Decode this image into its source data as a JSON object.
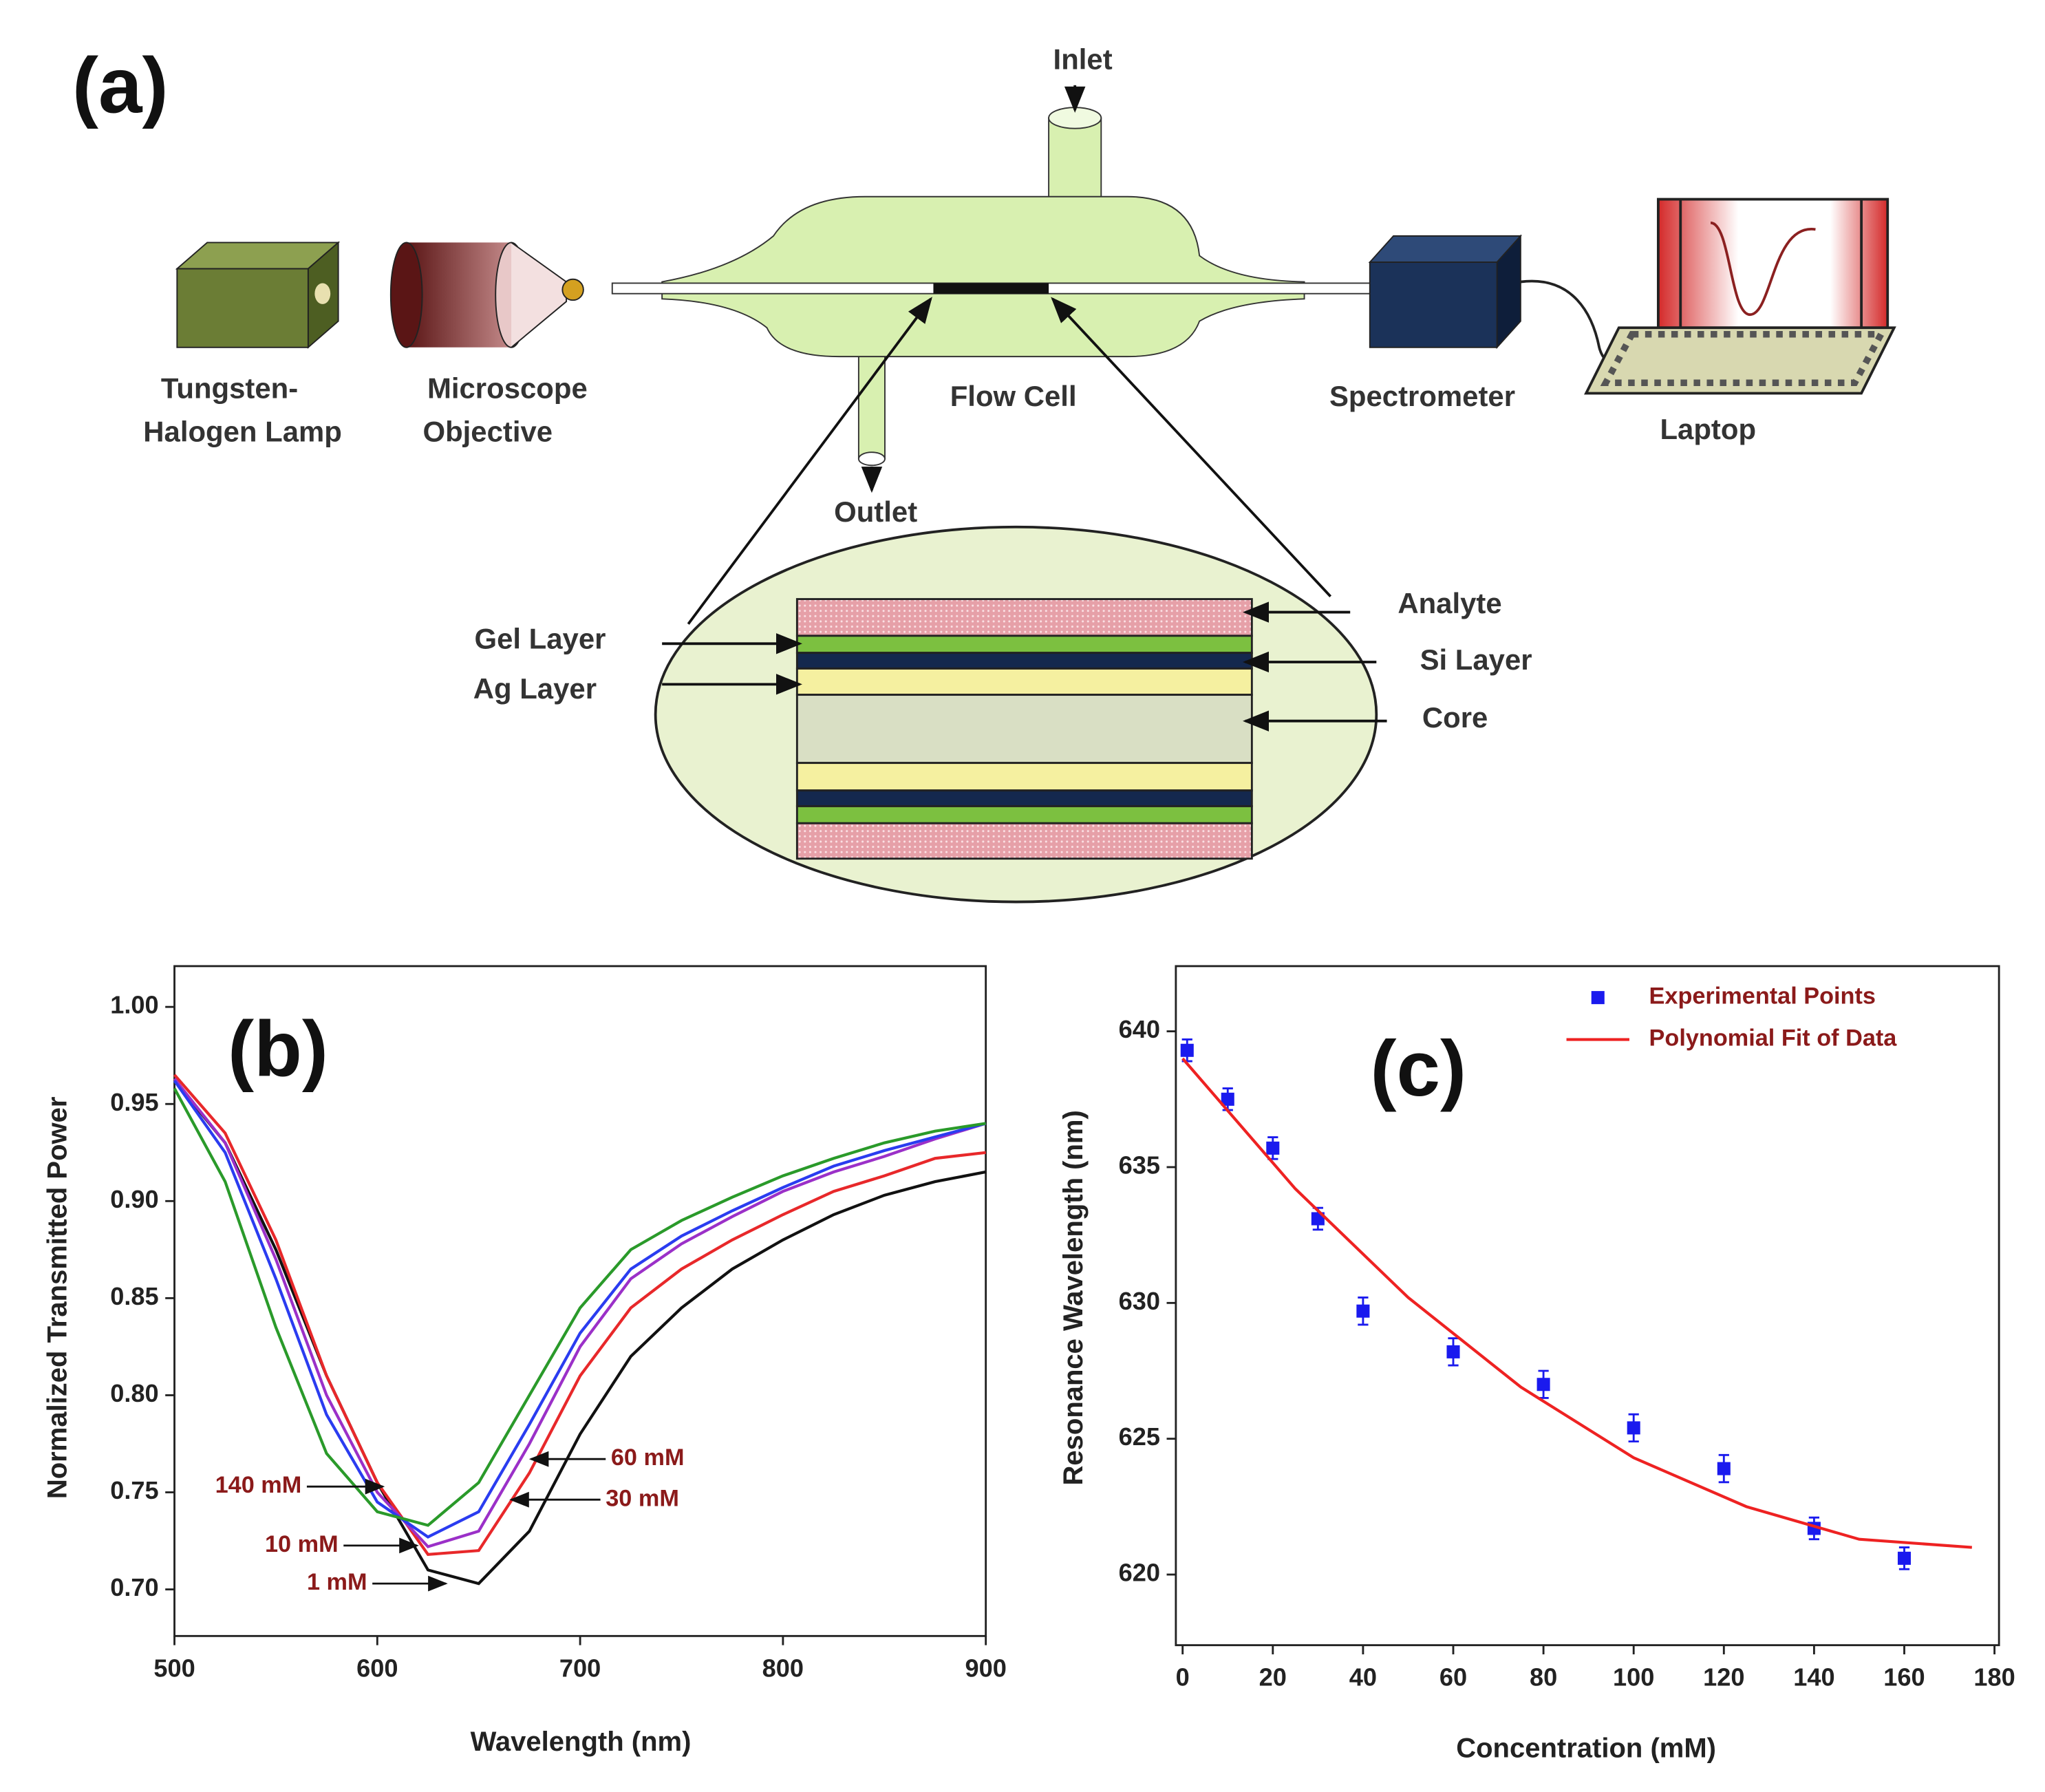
{
  "diagram": {
    "panel": "(a)",
    "inlet": "Inlet",
    "outlet": "Outlet",
    "lamp": [
      "Tungsten-",
      "Halogen Lamp"
    ],
    "objective": [
      "Microscope",
      "Objective"
    ],
    "flow_cell": "Flow Cell",
    "spectrometer": "Spectrometer",
    "laptop": "Laptop",
    "layers": {
      "gel": "Gel Layer",
      "ag": "Ag Layer",
      "analyte": "Analyte",
      "si": "Si Layer",
      "core": "Core"
    }
  },
  "chart_data": [
    {
      "type": "line",
      "panel": "(b)",
      "x_label": "Wavelength (nm)",
      "y_label": "Normalized Transmitted Power",
      "x": [
        500,
        525,
        550,
        575,
        600,
        625,
        650,
        675,
        700,
        725,
        750,
        775,
        800,
        825,
        850,
        875,
        900
      ],
      "series": [
        {
          "name": "1 mM",
          "color": "#111111",
          "values": [
            0.962,
            0.93,
            0.875,
            0.81,
            0.755,
            0.71,
            0.703,
            0.73,
            0.78,
            0.82,
            0.845,
            0.865,
            0.88,
            0.893,
            0.903,
            0.91,
            0.915
          ]
        },
        {
          "name": "10 mM",
          "color": "#e8282a",
          "values": [
            0.965,
            0.935,
            0.88,
            0.81,
            0.755,
            0.718,
            0.72,
            0.76,
            0.81,
            0.845,
            0.865,
            0.88,
            0.893,
            0.905,
            0.913,
            0.922,
            0.925
          ]
        },
        {
          "name": "30 mM",
          "color": "#9b30c8",
          "values": [
            0.963,
            0.93,
            0.87,
            0.8,
            0.75,
            0.722,
            0.73,
            0.775,
            0.825,
            0.86,
            0.878,
            0.892,
            0.905,
            0.915,
            0.923,
            0.932,
            0.94
          ]
        },
        {
          "name": "60 mM",
          "color": "#2a3cf0",
          "values": [
            0.962,
            0.925,
            0.86,
            0.79,
            0.745,
            0.727,
            0.74,
            0.785,
            0.832,
            0.865,
            0.882,
            0.895,
            0.907,
            0.918,
            0.926,
            0.933,
            0.94
          ]
        },
        {
          "name": "140 mM",
          "color": "#2a9a2a",
          "values": [
            0.958,
            0.91,
            0.835,
            0.77,
            0.74,
            0.733,
            0.755,
            0.8,
            0.845,
            0.875,
            0.89,
            0.902,
            0.913,
            0.922,
            0.93,
            0.936,
            0.94
          ]
        }
      ],
      "xlim": [
        500,
        900
      ],
      "xticks": [
        500,
        600,
        700,
        800,
        900
      ],
      "ylim": [
        0.676,
        1.021
      ],
      "yticks": [
        {
          "value": 0.7,
          "label": "0.70"
        },
        0.75,
        {
          "value": 0.8,
          "label": "0.80"
        },
        0.85,
        {
          "value": 0.9,
          "label": "0.90"
        },
        0.95,
        {
          "value": 1,
          "label": "1.00"
        }
      ]
    },
    {
      "type": "scatter",
      "panel": "(c)",
      "x_label": "Concentration (mM)",
      "y_label": "Resonance Wavelength (nm)",
      "legend": "upper right",
      "series": [
        {
          "name": "Experimental Points",
          "color": "#1a1aee",
          "mode": "markers",
          "x": [
            1,
            10,
            20,
            30,
            40,
            60,
            80,
            100,
            120,
            140,
            160
          ],
          "values": [
            639.3,
            637.5,
            635.7,
            633.1,
            629.7,
            628.2,
            627.0,
            625.4,
            623.9,
            621.7,
            620.6
          ],
          "errors": [
            0.4,
            0.4,
            0.4,
            0.4,
            0.5,
            0.5,
            0.5,
            0.5,
            0.5,
            0.4,
            0.4
          ]
        },
        {
          "name": "Polynomial Fit of Data",
          "color": "#ee2222",
          "mode": "line",
          "x": [
            0,
            25,
            50,
            75,
            100,
            125,
            150,
            175
          ],
          "values": [
            639.0,
            634.2,
            630.2,
            626.9,
            624.3,
            622.5,
            621.3,
            621.0
          ]
        }
      ],
      "xlim": [
        -1.5,
        181
      ],
      "xticks": [
        0,
        20,
        40,
        60,
        80,
        100,
        120,
        140,
        160,
        180
      ],
      "ylim": [
        617.4,
        642.4
      ],
      "yticks": [
        620,
        625,
        630,
        635,
        640
      ]
    }
  ]
}
